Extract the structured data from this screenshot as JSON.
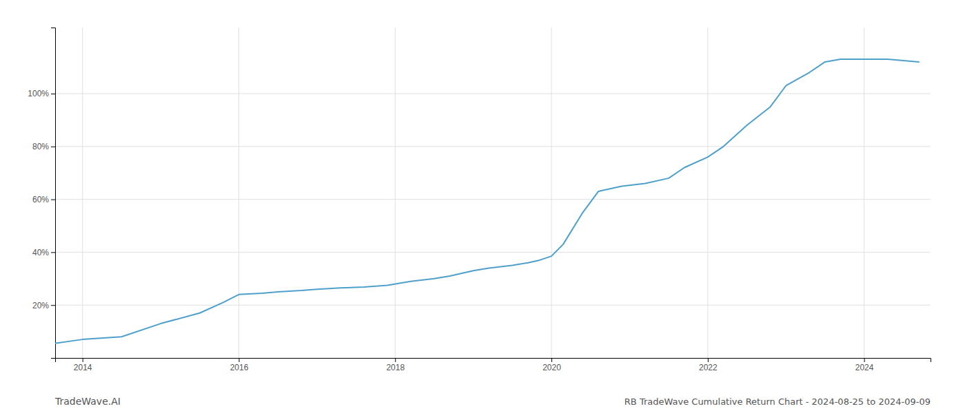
{
  "chart_data": {
    "type": "line",
    "title": "RB TradeWave Cumulative Return Chart - 2024-08-25 to 2024-09-09",
    "annotations": [
      "TradeWave.AI"
    ],
    "x": [
      2013.65,
      2014.0,
      2014.5,
      2015.0,
      2015.5,
      2015.8,
      2016.0,
      2016.3,
      2016.5,
      2016.8,
      2017.0,
      2017.3,
      2017.6,
      2017.9,
      2018.2,
      2018.5,
      2018.7,
      2019.0,
      2019.2,
      2019.5,
      2019.7,
      2019.85,
      2020.0,
      2020.15,
      2020.4,
      2020.6,
      2020.9,
      2021.2,
      2021.5,
      2021.7,
      2022.0,
      2022.2,
      2022.5,
      2022.8,
      2023.0,
      2023.3,
      2023.5,
      2023.7,
      2024.0,
      2024.3,
      2024.7
    ],
    "values": [
      5.5,
      7,
      8,
      13,
      17,
      21,
      24,
      24.5,
      25,
      25.5,
      26,
      26.5,
      26.8,
      27.5,
      29,
      30,
      31,
      33,
      34,
      35,
      36,
      37,
      38.5,
      43,
      55,
      63,
      65,
      66,
      68,
      72,
      76,
      80,
      88,
      95,
      103,
      108,
      112,
      113,
      113,
      113,
      112
    ],
    "color": "#4d9fcc",
    "xlim": [
      2013.65,
      2024.85
    ],
    "xticks": [
      2014,
      2016,
      2018,
      2020,
      2022,
      2024
    ],
    "ylim": [
      0,
      125
    ],
    "yticks": [
      {
        "value": 20,
        "label": "20%"
      },
      {
        "value": 40,
        "label": "40%"
      },
      {
        "value": 60,
        "label": "60%"
      },
      {
        "value": 80,
        "label": "80%"
      },
      {
        "value": 100,
        "label": "100%"
      }
    ],
    "grid": true
  }
}
